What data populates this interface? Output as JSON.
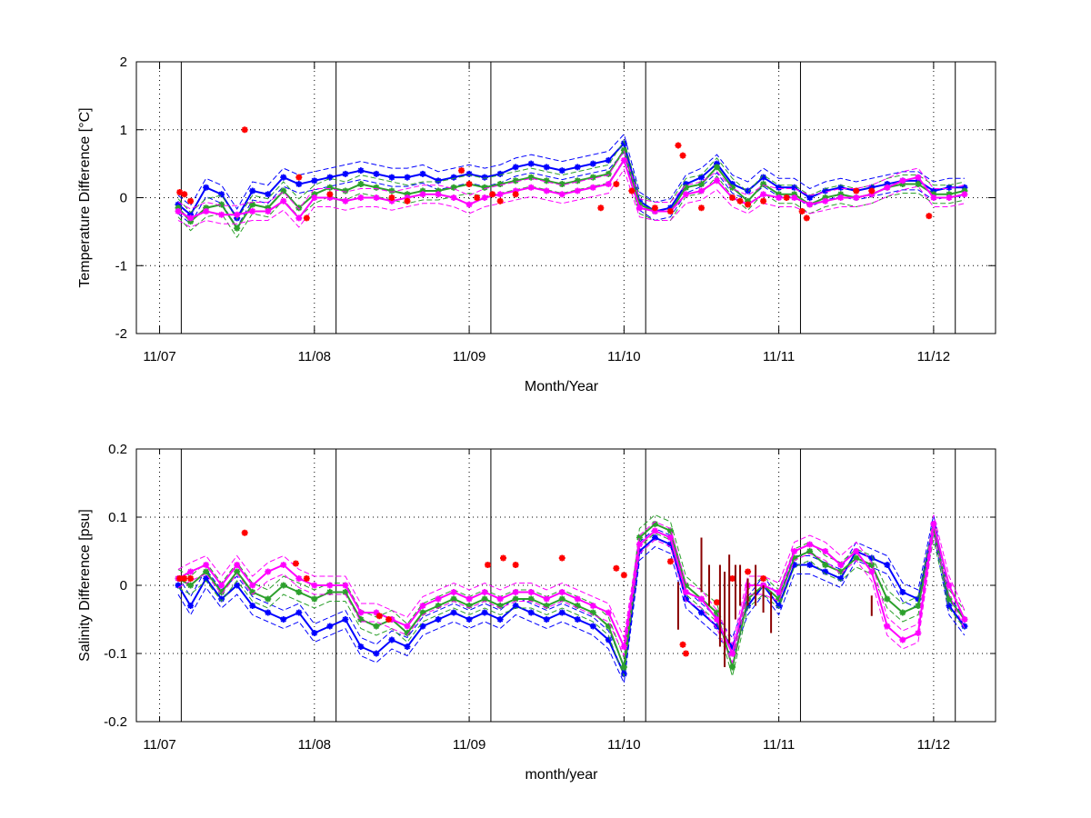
{
  "chart_data": [
    {
      "type": "line",
      "ylabel": "Temperature Difference [°C]",
      "xlabel": "Month/Year",
      "x_ticks": [
        "11/07",
        "11/08",
        "11/09",
        "11/10",
        "11/11",
        "11/12"
      ],
      "y_ticks": [
        -2,
        -1,
        0,
        1,
        2
      ],
      "ylim": [
        -2,
        2
      ],
      "xlim": [
        -0.15,
        5.4
      ],
      "grid": "dotted",
      "deployment_lines": [
        0.14,
        1.14,
        2.14,
        3.14,
        4.14,
        5.14
      ],
      "series": [
        {
          "color": "#0000ff",
          "style": "star-line",
          "x": [
            0.12,
            0.2,
            0.3,
            0.4,
            0.5,
            0.6,
            0.7,
            0.8,
            0.9,
            1.0,
            1.1,
            1.2,
            1.3,
            1.4,
            1.5,
            1.6,
            1.7,
            1.8,
            1.9,
            2.0,
            2.1,
            2.2,
            2.3,
            2.4,
            2.5,
            2.6,
            2.7,
            2.8,
            2.9,
            3.0,
            3.1,
            3.2,
            3.3,
            3.4,
            3.5,
            3.6,
            3.7,
            3.8,
            3.9,
            4.0,
            4.1,
            4.2,
            4.3,
            4.4,
            4.5,
            4.6,
            4.7,
            4.8,
            4.9,
            5.0,
            5.1,
            5.2
          ],
          "values": [
            -0.1,
            -0.25,
            0.15,
            0.05,
            -0.3,
            0.1,
            0.05,
            0.3,
            0.2,
            0.25,
            0.3,
            0.35,
            0.4,
            0.35,
            0.3,
            0.3,
            0.35,
            0.25,
            0.3,
            0.35,
            0.3,
            0.35,
            0.45,
            0.5,
            0.45,
            0.4,
            0.45,
            0.5,
            0.55,
            0.8,
            -0.05,
            -0.2,
            -0.15,
            0.2,
            0.3,
            0.5,
            0.2,
            0.1,
            0.3,
            0.15,
            0.15,
            0.0,
            0.1,
            0.15,
            0.1,
            0.15,
            0.2,
            0.25,
            0.25,
            0.1,
            0.15,
            0.15
          ]
        },
        {
          "color": "#2ca02c",
          "style": "star-line",
          "x": [
            0.12,
            0.2,
            0.3,
            0.4,
            0.5,
            0.6,
            0.7,
            0.8,
            0.9,
            1.0,
            1.1,
            1.2,
            1.3,
            1.4,
            1.5,
            1.6,
            1.7,
            1.8,
            1.9,
            2.0,
            2.1,
            2.2,
            2.3,
            2.4,
            2.5,
            2.6,
            2.7,
            2.8,
            2.9,
            3.0,
            3.1,
            3.2,
            3.3,
            3.4,
            3.5,
            3.6,
            3.7,
            3.8,
            3.9,
            4.0,
            4.1,
            4.2,
            4.3,
            4.4,
            4.5,
            4.6,
            4.7,
            4.8,
            4.9,
            5.0,
            5.1,
            5.2
          ],
          "values": [
            -0.15,
            -0.35,
            -0.15,
            -0.1,
            -0.45,
            -0.1,
            -0.15,
            0.1,
            -0.15,
            0.05,
            0.15,
            0.1,
            0.2,
            0.15,
            0.1,
            0.05,
            0.1,
            0.1,
            0.15,
            0.2,
            0.15,
            0.2,
            0.25,
            0.3,
            0.25,
            0.2,
            0.25,
            0.3,
            0.35,
            0.7,
            -0.1,
            -0.2,
            -0.2,
            0.15,
            0.2,
            0.45,
            0.15,
            -0.05,
            0.2,
            0.05,
            0.05,
            -0.1,
            0.0,
            0.05,
            0.0,
            0.05,
            0.15,
            0.2,
            0.2,
            0.05,
            0.05,
            0.1
          ]
        },
        {
          "color": "#ff00ff",
          "style": "star-line",
          "x": [
            0.12,
            0.2,
            0.3,
            0.4,
            0.5,
            0.6,
            0.7,
            0.8,
            0.9,
            1.0,
            1.1,
            1.2,
            1.3,
            1.4,
            1.5,
            1.6,
            1.7,
            1.8,
            1.9,
            2.0,
            2.1,
            2.2,
            2.3,
            2.4,
            2.5,
            2.6,
            2.7,
            2.8,
            2.9,
            3.0,
            3.1,
            3.2,
            3.3,
            3.4,
            3.5,
            3.6,
            3.7,
            3.8,
            3.9,
            4.0,
            4.1,
            4.2,
            4.3,
            4.4,
            4.5,
            4.6,
            4.7,
            4.8,
            4.9,
            5.0,
            5.1,
            5.2
          ],
          "values": [
            -0.2,
            -0.3,
            -0.2,
            -0.25,
            -0.25,
            -0.2,
            -0.2,
            -0.05,
            -0.3,
            0.0,
            0.0,
            -0.05,
            0.0,
            0.0,
            -0.05,
            0.0,
            0.05,
            0.05,
            0.0,
            -0.1,
            0.0,
            0.05,
            0.1,
            0.15,
            0.1,
            0.05,
            0.1,
            0.15,
            0.2,
            0.55,
            -0.15,
            -0.2,
            -0.2,
            0.05,
            0.1,
            0.25,
            0.0,
            -0.1,
            0.05,
            0.0,
            0.0,
            -0.1,
            -0.05,
            0.0,
            0.0,
            0.05,
            0.15,
            0.25,
            0.3,
            0.0,
            0.0,
            0.05
          ]
        },
        {
          "color": "#ff0000",
          "style": "points",
          "x": [
            0.13,
            0.16,
            0.2,
            0.55,
            0.9,
            0.95,
            1.1,
            1.5,
            1.6,
            1.95,
            2.0,
            2.05,
            2.15,
            2.2,
            2.3,
            2.85,
            2.95,
            3.05,
            3.2,
            3.3,
            3.35,
            3.38,
            3.5,
            3.7,
            3.75,
            3.8,
            3.9,
            4.05,
            4.15,
            4.18,
            4.5,
            4.6,
            4.97
          ],
          "values": [
            0.08,
            0.05,
            -0.05,
            1.0,
            0.3,
            -0.3,
            0.05,
            0.0,
            -0.05,
            0.4,
            0.2,
            0.0,
            0.05,
            -0.05,
            0.05,
            -0.15,
            0.2,
            0.1,
            -0.15,
            -0.2,
            0.77,
            0.62,
            -0.15,
            0.0,
            -0.05,
            -0.1,
            -0.05,
            0.0,
            -0.2,
            -0.3,
            0.1,
            0.1,
            -0.27
          ]
        }
      ]
    },
    {
      "type": "line",
      "ylabel": "Salinity Difference [psu]",
      "xlabel": "month/year",
      "x_ticks": [
        "11/07",
        "11/08",
        "11/09",
        "11/10",
        "11/11",
        "11/12"
      ],
      "y_ticks": [
        -0.2,
        -0.1,
        0,
        0.1,
        0.2
      ],
      "ylim": [
        -0.2,
        0.2
      ],
      "xlim": [
        -0.15,
        5.4
      ],
      "grid": "dotted",
      "deployment_lines": [
        0.14,
        1.14,
        2.14,
        3.14,
        4.14,
        5.14
      ],
      "series": [
        {
          "color": "#0000ff",
          "style": "star-line",
          "x": [
            0.12,
            0.2,
            0.3,
            0.4,
            0.5,
            0.6,
            0.7,
            0.8,
            0.9,
            1.0,
            1.1,
            1.2,
            1.3,
            1.4,
            1.5,
            1.6,
            1.7,
            1.8,
            1.9,
            2.0,
            2.1,
            2.2,
            2.3,
            2.4,
            2.5,
            2.6,
            2.7,
            2.8,
            2.9,
            3.0,
            3.1,
            3.2,
            3.3,
            3.4,
            3.5,
            3.6,
            3.7,
            3.8,
            3.9,
            4.0,
            4.1,
            4.2,
            4.3,
            4.4,
            4.5,
            4.6,
            4.7,
            4.8,
            4.9,
            5.0,
            5.1,
            5.2
          ],
          "values": [
            0.0,
            -0.03,
            0.01,
            -0.02,
            0.0,
            -0.03,
            -0.04,
            -0.05,
            -0.04,
            -0.07,
            -0.06,
            -0.05,
            -0.09,
            -0.1,
            -0.08,
            -0.09,
            -0.06,
            -0.05,
            -0.04,
            -0.05,
            -0.04,
            -0.05,
            -0.03,
            -0.04,
            -0.05,
            -0.04,
            -0.05,
            -0.06,
            -0.08,
            -0.13,
            0.05,
            0.07,
            0.06,
            -0.02,
            -0.04,
            -0.06,
            -0.09,
            -0.03,
            0.0,
            -0.03,
            0.03,
            0.03,
            0.02,
            0.01,
            0.05,
            0.04,
            0.03,
            -0.01,
            -0.02,
            0.09,
            -0.03,
            -0.06
          ]
        },
        {
          "color": "#2ca02c",
          "style": "star-line",
          "x": [
            0.12,
            0.2,
            0.3,
            0.4,
            0.5,
            0.6,
            0.7,
            0.8,
            0.9,
            1.0,
            1.1,
            1.2,
            1.3,
            1.4,
            1.5,
            1.6,
            1.7,
            1.8,
            1.9,
            2.0,
            2.1,
            2.2,
            2.3,
            2.4,
            2.5,
            2.6,
            2.7,
            2.8,
            2.9,
            3.0,
            3.1,
            3.2,
            3.3,
            3.4,
            3.5,
            3.6,
            3.7,
            3.8,
            3.9,
            4.0,
            4.1,
            4.2,
            4.3,
            4.4,
            4.5,
            4.6,
            4.7,
            4.8,
            4.9,
            5.0,
            5.1,
            5.2
          ],
          "values": [
            0.01,
            0.0,
            0.02,
            -0.01,
            0.02,
            -0.01,
            -0.02,
            0.0,
            -0.01,
            -0.02,
            -0.01,
            -0.01,
            -0.05,
            -0.06,
            -0.05,
            -0.07,
            -0.04,
            -0.03,
            -0.02,
            -0.03,
            -0.02,
            -0.03,
            -0.02,
            -0.02,
            -0.03,
            -0.02,
            -0.03,
            -0.04,
            -0.06,
            -0.12,
            0.07,
            0.09,
            0.08,
            0.0,
            -0.02,
            -0.04,
            -0.12,
            -0.02,
            0.0,
            -0.02,
            0.04,
            0.05,
            0.03,
            0.02,
            0.04,
            0.03,
            -0.02,
            -0.04,
            -0.03,
            0.08,
            -0.02,
            -0.05
          ]
        },
        {
          "color": "#ff00ff",
          "style": "star-line",
          "x": [
            0.12,
            0.2,
            0.3,
            0.4,
            0.5,
            0.6,
            0.7,
            0.8,
            0.9,
            1.0,
            1.1,
            1.2,
            1.3,
            1.4,
            1.5,
            1.6,
            1.7,
            1.8,
            1.9,
            2.0,
            2.1,
            2.2,
            2.3,
            2.4,
            2.5,
            2.6,
            2.7,
            2.8,
            2.9,
            3.0,
            3.1,
            3.2,
            3.3,
            3.4,
            3.5,
            3.6,
            3.7,
            3.8,
            3.9,
            4.0,
            4.1,
            4.2,
            4.3,
            4.4,
            4.5,
            4.6,
            4.7,
            4.8,
            4.9,
            5.0,
            5.1,
            5.2
          ],
          "values": [
            0.01,
            0.02,
            0.03,
            0.0,
            0.03,
            0.0,
            0.02,
            0.03,
            0.01,
            0.0,
            0.0,
            0.0,
            -0.04,
            -0.04,
            -0.05,
            -0.06,
            -0.03,
            -0.02,
            -0.01,
            -0.02,
            -0.01,
            -0.02,
            -0.01,
            -0.01,
            -0.02,
            -0.01,
            -0.02,
            -0.03,
            -0.04,
            -0.09,
            0.06,
            0.08,
            0.07,
            -0.01,
            -0.02,
            -0.05,
            -0.1,
            0.0,
            0.0,
            -0.01,
            0.05,
            0.06,
            0.05,
            0.03,
            0.05,
            0.02,
            -0.06,
            -0.08,
            -0.07,
            0.09,
            0.0,
            -0.05
          ]
        },
        {
          "color": "#ff0000",
          "style": "points",
          "x": [
            0.13,
            0.16,
            0.2,
            0.55,
            0.88,
            0.95,
            1.42,
            1.48,
            2.12,
            2.22,
            2.3,
            2.6,
            2.95,
            3.0,
            3.3,
            3.38,
            3.4,
            3.6,
            3.7,
            3.8,
            3.9
          ],
          "values": [
            0.01,
            0.01,
            0.01,
            0.077,
            0.032,
            0.01,
            -0.045,
            -0.05,
            0.03,
            0.04,
            0.03,
            0.04,
            0.025,
            0.015,
            0.035,
            -0.087,
            -0.1,
            -0.025,
            0.01,
            0.02,
            0.01
          ]
        },
        {
          "color": "#8b0000",
          "style": "error-bars",
          "x": [
            3.35,
            3.5,
            3.55,
            3.62,
            3.65,
            3.68,
            3.72,
            3.75,
            3.8,
            3.85,
            3.9,
            3.95,
            4.6
          ],
          "values": [
            -0.03,
            0.03,
            0.0,
            -0.03,
            -0.05,
            -0.02,
            -0.01,
            0.0,
            -0.01,
            0.0,
            -0.02,
            -0.04,
            -0.03
          ],
          "errors": [
            0.035,
            0.04,
            0.03,
            0.06,
            0.07,
            0.065,
            0.04,
            0.03,
            0.02,
            0.03,
            0.02,
            0.03,
            0.015
          ]
        }
      ]
    }
  ]
}
